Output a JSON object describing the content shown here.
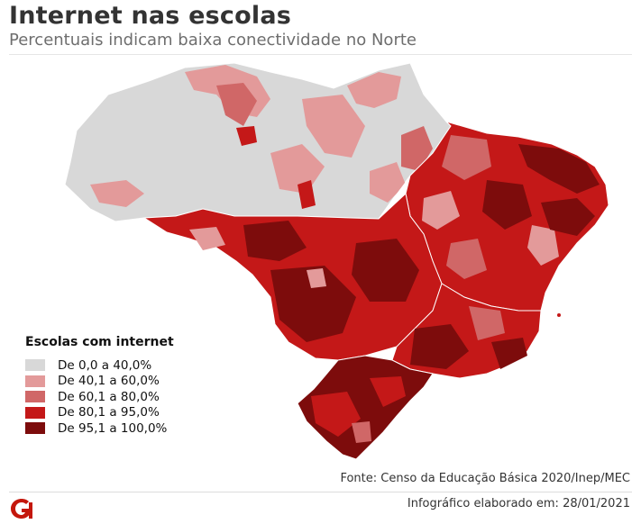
{
  "header": {
    "title": "Internet nas escolas",
    "subtitle": "Percentuais indicam baixa conectividade no Norte"
  },
  "legend": {
    "title": "Escolas com internet",
    "items": [
      {
        "label": "De 0,0 a 40,0%",
        "color": "#d8d8d8"
      },
      {
        "label": "De 40,1 a 60,0%",
        "color": "#e39a9a"
      },
      {
        "label": "De 60,1 a 80,0%",
        "color": "#d06767"
      },
      {
        "label": "De 80,1 a 95,0%",
        "color": "#c41818"
      },
      {
        "label": "De 95,1 a 100,0%",
        "color": "#7d0c0c"
      }
    ]
  },
  "footer": {
    "source": "Fonte: Censo da Educação Básica 2020/Inep/MEC",
    "logo_text": "G1",
    "credit": "Infográfico elaborado em: 28/01/2021"
  }
}
